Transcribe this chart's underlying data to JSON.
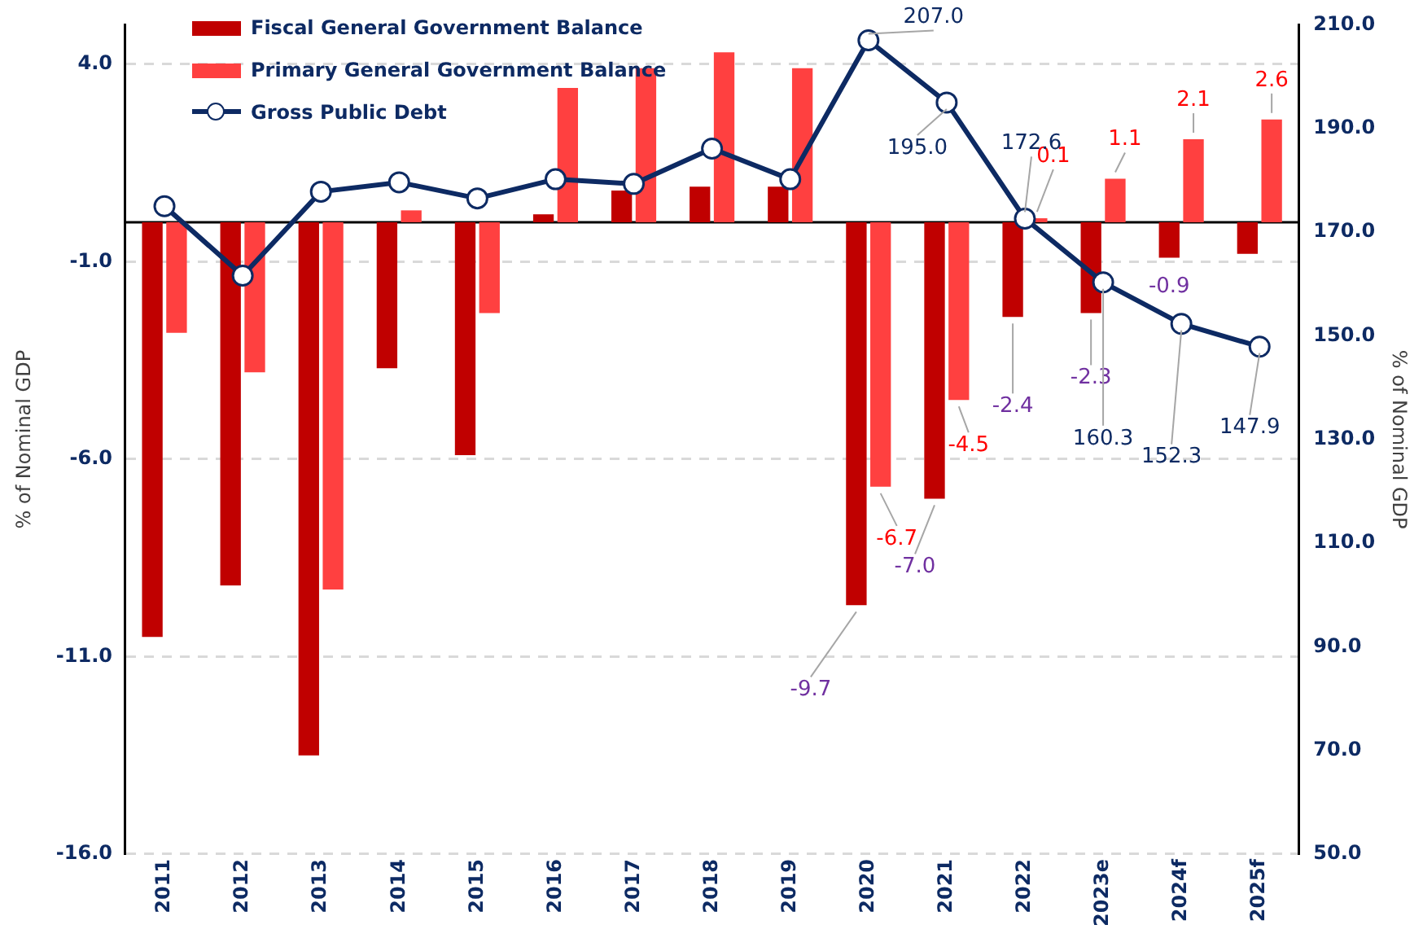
{
  "chart_data": {
    "type": "bar",
    "categories": [
      "2011",
      "2012",
      "2013",
      "2014",
      "2015",
      "2016",
      "2017",
      "2018",
      "2019",
      "2020",
      "2021",
      "2022",
      "2023e",
      "2024f",
      "2025f"
    ],
    "series": [
      {
        "name": "Fiscal General Government Balance",
        "color": "#c00000",
        "values": [
          -10.5,
          -9.2,
          -13.5,
          -3.7,
          -5.9,
          0.2,
          0.8,
          0.9,
          0.9,
          -9.7,
          -7.0,
          -2.4,
          -2.3,
          -0.9,
          -0.8
        ],
        "value_labels": [
          null,
          null,
          null,
          null,
          null,
          null,
          null,
          null,
          null,
          "-9.7",
          "-7.0",
          "-2.4",
          "-2.3",
          "-0.9",
          null
        ]
      },
      {
        "name": "Primary General Government Balance",
        "color": "#ff4040",
        "values": [
          -2.8,
          -3.8,
          -9.3,
          0.3,
          -2.3,
          3.4,
          3.9,
          4.3,
          3.9,
          -6.7,
          -4.5,
          0.1,
          1.1,
          2.1,
          2.6
        ],
        "value_labels": [
          null,
          null,
          null,
          null,
          null,
          null,
          null,
          null,
          null,
          "-6.7",
          "-4.5",
          "0.1",
          "1.1",
          "2.1",
          "2.6"
        ]
      },
      {
        "name": "Gross Public Debt",
        "type": "line",
        "axis": "y2",
        "color": "#0d2a63",
        "values": [
          175.0,
          161.6,
          177.8,
          179.6,
          176.5,
          180.2,
          179.3,
          186.1,
          180.2,
          207.0,
          195.0,
          172.6,
          160.3,
          152.3,
          147.9
        ],
        "value_labels": [
          null,
          null,
          null,
          null,
          null,
          null,
          null,
          null,
          null,
          "207.0",
          "195.0",
          "172.6",
          "160.3",
          "152.3",
          "147.9"
        ]
      }
    ],
    "ylabel": "% of Nominal GDP",
    "y2label": "% of Nominal GDP",
    "ylim": [
      -16,
      5
    ],
    "yticks": [
      {
        "value": 4,
        "label": "4.0"
      },
      {
        "value": -1,
        "label": "-1.0"
      },
      {
        "value": -6,
        "label": "-6.0"
      },
      {
        "value": -11,
        "label": "-11.0"
      },
      {
        "value": -16,
        "label": "-16.0"
      }
    ],
    "y2lim": [
      50,
      210
    ],
    "y2ticks": [
      {
        "value": 50,
        "label": "50.0"
      },
      {
        "value": 70,
        "label": "70.0"
      },
      {
        "value": 90,
        "label": "90.0"
      },
      {
        "value": 110,
        "label": "110.0"
      },
      {
        "value": 130,
        "label": "130.0"
      },
      {
        "value": 150,
        "label": "150.0"
      },
      {
        "value": 170,
        "label": "170.0"
      },
      {
        "value": 190,
        "label": "190.0"
      },
      {
        "value": 210,
        "label": "210.0"
      }
    ],
    "ref_lines": [
      {
        "axis": "y",
        "value": 0,
        "color": "#000000"
      }
    ],
    "grid": "y",
    "legend": "top left",
    "marker": "circle"
  }
}
